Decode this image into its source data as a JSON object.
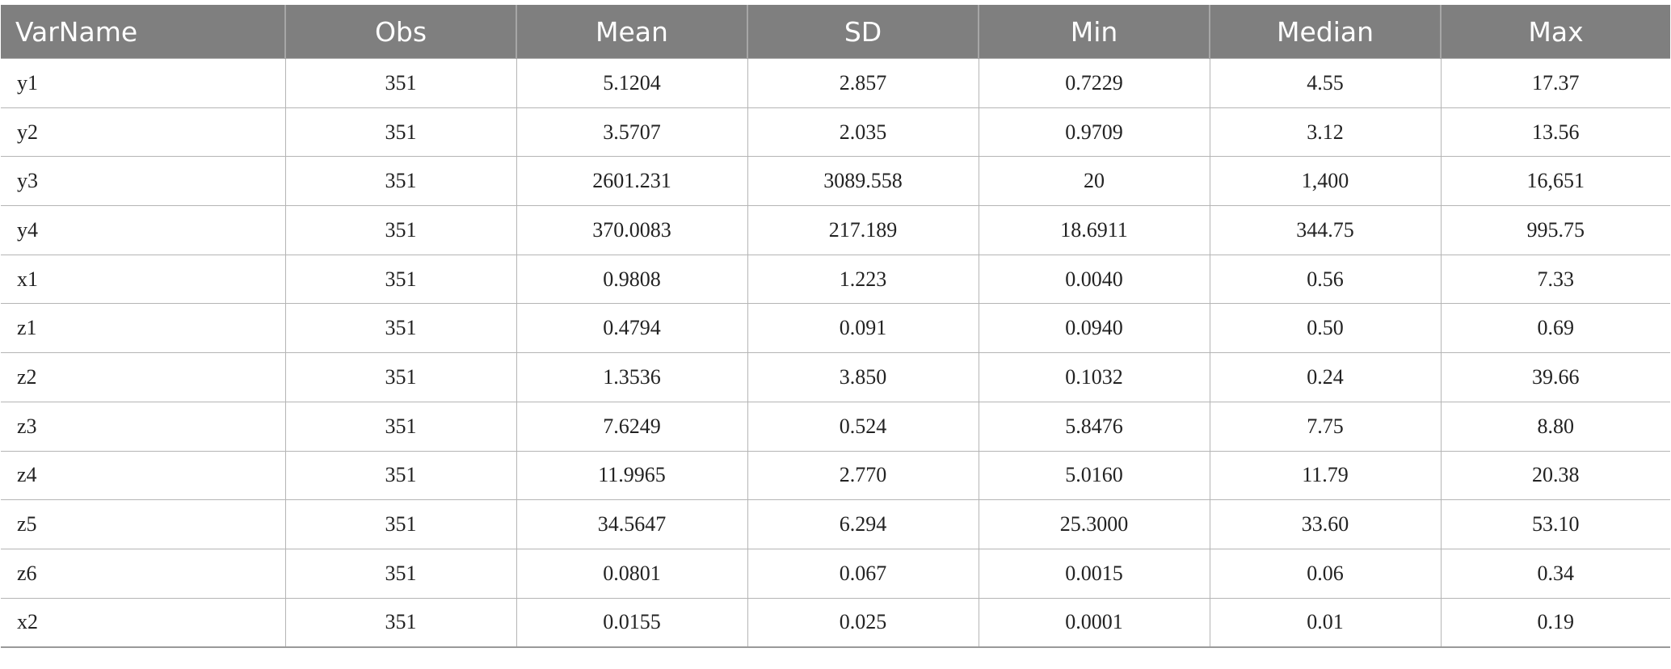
{
  "table": {
    "headers": [
      "VarName",
      "Obs",
      "Mean",
      "SD",
      "Min",
      "Median",
      "Max"
    ],
    "rows": [
      [
        "y1",
        "351",
        "5.1204",
        "2.857",
        "0.7229",
        "4.55",
        "17.37"
      ],
      [
        "y2",
        "351",
        "3.5707",
        "2.035",
        "0.9709",
        "3.12",
        "13.56"
      ],
      [
        "y3",
        "351",
        "2601.231",
        "3089.558",
        "20",
        "1,400",
        "16,651"
      ],
      [
        "y4",
        "351",
        "370.0083",
        "217.189",
        "18.6911",
        "344.75",
        "995.75"
      ],
      [
        "x1",
        "351",
        "0.9808",
        "1.223",
        "0.0040",
        "0.56",
        "7.33"
      ],
      [
        "z1",
        "351",
        "0.4794",
        "0.091",
        "0.0940",
        "0.50",
        "0.69"
      ],
      [
        "z2",
        "351",
        "1.3536",
        "3.850",
        "0.1032",
        "0.24",
        "39.66"
      ],
      [
        "z3",
        "351",
        "7.6249",
        "0.524",
        "5.8476",
        "7.75",
        "8.80"
      ],
      [
        "z4",
        "351",
        "11.9965",
        "2.770",
        "5.0160",
        "11.79",
        "20.38"
      ],
      [
        "z5",
        "351",
        "34.5647",
        "6.294",
        "25.3000",
        "33.60",
        "53.10"
      ],
      [
        "z6",
        "351",
        "0.0801",
        "0.067",
        "0.0015",
        "0.06",
        "0.34"
      ],
      [
        "x2",
        "351",
        "0.0155",
        "0.025",
        "0.0001",
        "0.01",
        "0.19"
      ]
    ]
  }
}
